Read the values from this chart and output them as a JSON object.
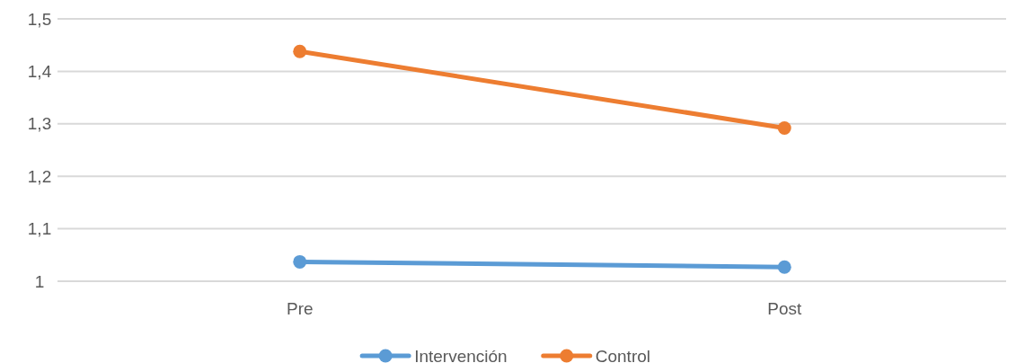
{
  "chart_data": {
    "type": "line",
    "categories": [
      "Pre",
      "Post"
    ],
    "series": [
      {
        "name": "Intervención",
        "color": "#5b9bd5",
        "values": [
          1.037,
          1.027
        ]
      },
      {
        "name": "Control",
        "color": "#ed7d31",
        "values": [
          1.438,
          1.292
        ]
      }
    ],
    "ylim": [
      1,
      1.5
    ],
    "yticks": [
      {
        "value": 1,
        "label": "1"
      },
      {
        "value": 1.1,
        "label": "1,1"
      },
      {
        "value": 1.2,
        "label": "1,2"
      },
      {
        "value": 1.3,
        "label": "1,3"
      },
      {
        "value": 1.4,
        "label": "1,4"
      },
      {
        "value": 1.5,
        "label": "1,5"
      }
    ],
    "grid": "y",
    "legend": "bottom",
    "marker": "circle",
    "line_style": "solid"
  }
}
